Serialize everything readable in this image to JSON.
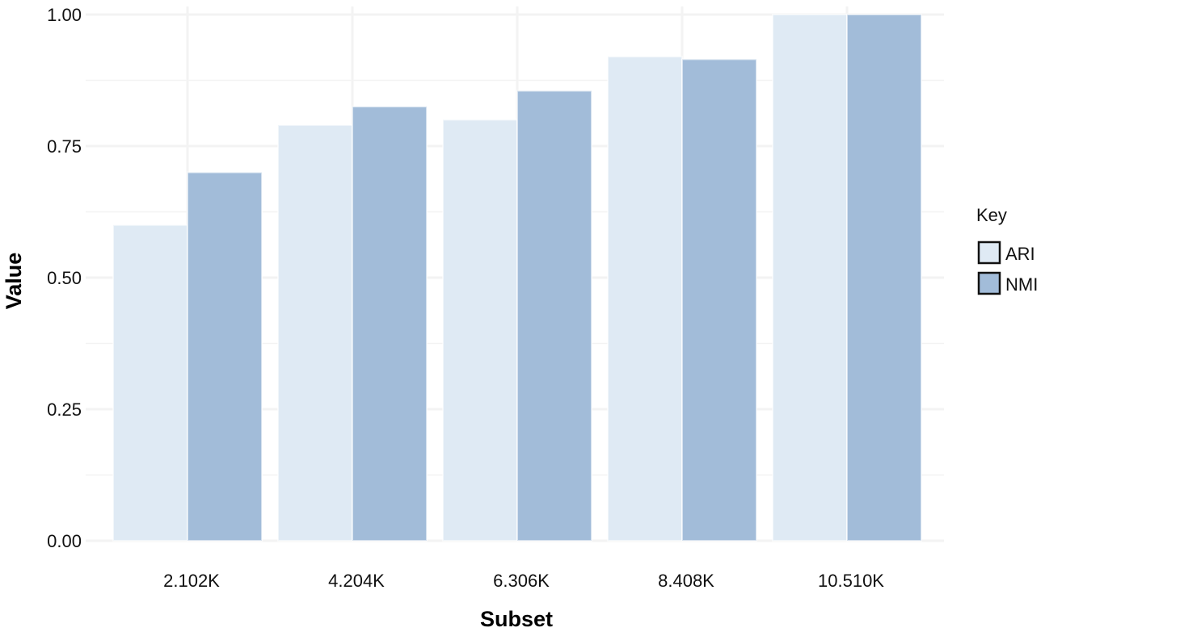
{
  "chart_data": {
    "type": "bar",
    "xlabel": "Subset",
    "ylabel": "Value",
    "categories": [
      "2.102K",
      "4.204K",
      "6.306K",
      "8.408K",
      "10.510K"
    ],
    "series": [
      {
        "name": "ARI",
        "values": [
          0.6,
          0.79,
          0.8,
          0.92,
          1.0
        ],
        "color": "#dfeaf4"
      },
      {
        "name": "NMI",
        "values": [
          0.7,
          0.825,
          0.855,
          0.915,
          1.0
        ],
        "color": "#a2bcd9"
      }
    ],
    "ylim": [
      0,
      1
    ],
    "yticks": [
      "0.00",
      "0.25",
      "0.50",
      "0.75",
      "1.00"
    ],
    "grid": true,
    "legend": {
      "title": "Key",
      "position": "right"
    },
    "gridline_color": "#f3f3f3",
    "bar_stroke_color": "#ffffff"
  }
}
